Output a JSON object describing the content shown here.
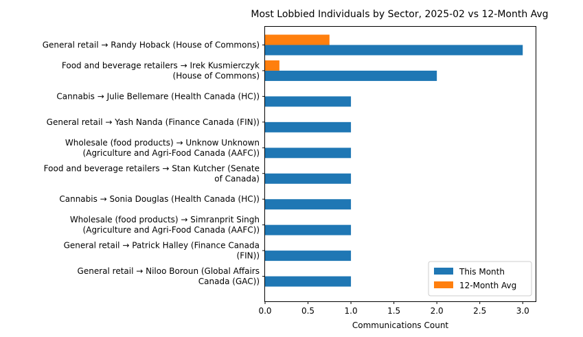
{
  "chart_data": {
    "type": "bar",
    "orientation": "horizontal",
    "title": "Most Lobbied Individuals by Sector, 2025-02 vs 12-Month Avg",
    "xlabel": "Communications Count",
    "ylabel": "",
    "xlim": [
      0,
      3.15
    ],
    "xticks": [
      "0.0",
      "0.5",
      "1.0",
      "1.5",
      "2.0",
      "2.5",
      "3.0"
    ],
    "xtick_values": [
      0,
      0.5,
      1,
      1.5,
      2,
      2.5,
      3
    ],
    "grid": false,
    "legend_position": "bottom-right",
    "categories": [
      [
        "General retail → Randy Hoback (House of Commons)"
      ],
      [
        "Food and beverage retailers → Irek Kusmierczyk",
        "(House of Commons)"
      ],
      [
        "Cannabis → Julie Bellemare (Health Canada (HC))"
      ],
      [
        "General retail → Yash Nanda (Finance Canada (FIN))"
      ],
      [
        "Wholesale (food products) → Unknow Unknown",
        "(Agriculture and Agri-Food Canada (AAFC))"
      ],
      [
        "Food and beverage retailers → Stan Kutcher (Senate",
        "of Canada)"
      ],
      [
        "Cannabis → Sonia Douglas (Health Canada (HC))"
      ],
      [
        "Wholesale (food products) → Simranprit Singh",
        "(Agriculture and Agri-Food Canada (AAFC))"
      ],
      [
        "General retail → Patrick Halley (Finance Canada",
        "(FIN))"
      ],
      [
        "General retail → Niloo Boroun (Global Affairs",
        "Canada (GAC))"
      ]
    ],
    "series": [
      {
        "name": "This Month",
        "color": "#1f77b4",
        "values": [
          3,
          2,
          1,
          1,
          1,
          1,
          1,
          1,
          1,
          1
        ]
      },
      {
        "name": "12-Month Avg",
        "color": "#ff7f0e",
        "values": [
          0.75,
          0.167,
          0,
          0,
          0,
          0,
          0,
          0,
          0,
          0
        ]
      }
    ]
  }
}
